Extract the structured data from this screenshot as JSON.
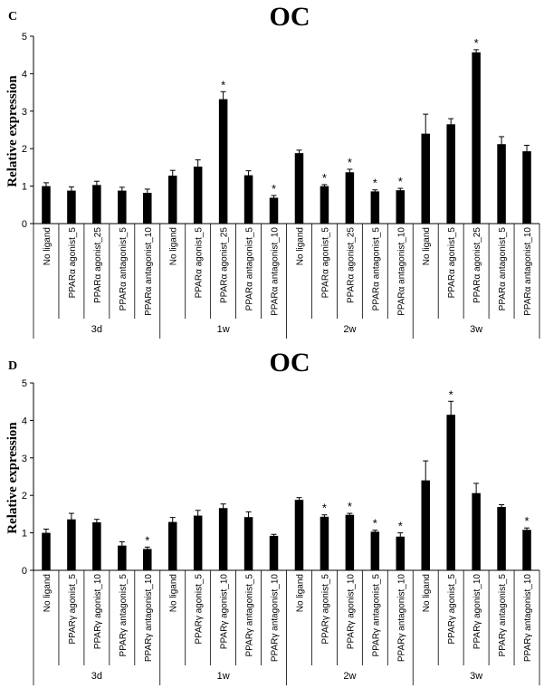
{
  "chart_data": [
    {
      "type": "bar",
      "panel_label": "C",
      "title": "OC",
      "ylabel": "Relative expression",
      "xlabel": "",
      "ylim": [
        0,
        5
      ],
      "yticks": [
        "0",
        "1",
        "2",
        "3",
        "4",
        "5"
      ],
      "groups": [
        "3d",
        "1w",
        "2w",
        "3w"
      ],
      "categories": [
        "No ligand",
        "PPARα agonist_5",
        "PPARα agonist_25",
        "PPARα antagonist_5",
        "PPARα antagonist_10"
      ],
      "series": [
        {
          "name": "3d",
          "values": [
            1.0,
            0.88,
            1.03,
            0.88,
            0.82
          ],
          "errors": [
            0.09,
            0.1,
            0.1,
            0.09,
            0.1
          ],
          "sig": [
            false,
            false,
            false,
            false,
            false
          ]
        },
        {
          "name": "1w",
          "values": [
            1.28,
            1.52,
            3.32,
            1.29,
            0.69
          ],
          "errors": [
            0.14,
            0.18,
            0.2,
            0.12,
            0.06
          ],
          "sig": [
            false,
            false,
            true,
            false,
            true
          ]
        },
        {
          "name": "2w",
          "values": [
            1.88,
            1.0,
            1.37,
            0.86,
            0.89
          ],
          "errors": [
            0.08,
            0.04,
            0.08,
            0.04,
            0.05
          ],
          "sig": [
            false,
            true,
            true,
            true,
            true
          ]
        },
        {
          "name": "3w",
          "values": [
            2.4,
            2.65,
            4.57,
            2.12,
            1.93
          ],
          "errors": [
            0.52,
            0.15,
            0.07,
            0.2,
            0.16
          ],
          "sig": [
            false,
            false,
            true,
            false,
            false
          ]
        }
      ],
      "significance_marker": "*"
    },
    {
      "type": "bar",
      "panel_label": "D",
      "title": "OC",
      "ylabel": "Relative expression",
      "xlabel": "",
      "ylim": [
        0,
        5
      ],
      "yticks": [
        "0",
        "1",
        "2",
        "3",
        "4",
        "5"
      ],
      "groups": [
        "3d",
        "1w",
        "2w",
        "3w"
      ],
      "categories": [
        "No ligand",
        "PPARγ agonist_5",
        "PPARγ agonist_10",
        "PPARγ antagonist_5",
        "PPARγ antagonist_10"
      ],
      "series": [
        {
          "name": "3d",
          "values": [
            1.0,
            1.36,
            1.28,
            0.66,
            0.57
          ],
          "errors": [
            0.1,
            0.16,
            0.08,
            0.1,
            0.05
          ],
          "sig": [
            false,
            false,
            false,
            false,
            true
          ]
        },
        {
          "name": "1w",
          "values": [
            1.29,
            1.46,
            1.66,
            1.42,
            0.92
          ],
          "errors": [
            0.12,
            0.14,
            0.11,
            0.14,
            0.04
          ],
          "sig": [
            false,
            false,
            false,
            false,
            false
          ]
        },
        {
          "name": "2w",
          "values": [
            1.88,
            1.43,
            1.48,
            1.03,
            0.9
          ],
          "errors": [
            0.06,
            0.05,
            0.04,
            0.04,
            0.1
          ],
          "sig": [
            false,
            true,
            true,
            true,
            true
          ]
        },
        {
          "name": "3w",
          "values": [
            2.4,
            4.15,
            2.06,
            1.69,
            1.08
          ],
          "errors": [
            0.52,
            0.36,
            0.26,
            0.06,
            0.05
          ],
          "sig": [
            false,
            true,
            false,
            false,
            true
          ]
        }
      ],
      "significance_marker": "*"
    }
  ]
}
